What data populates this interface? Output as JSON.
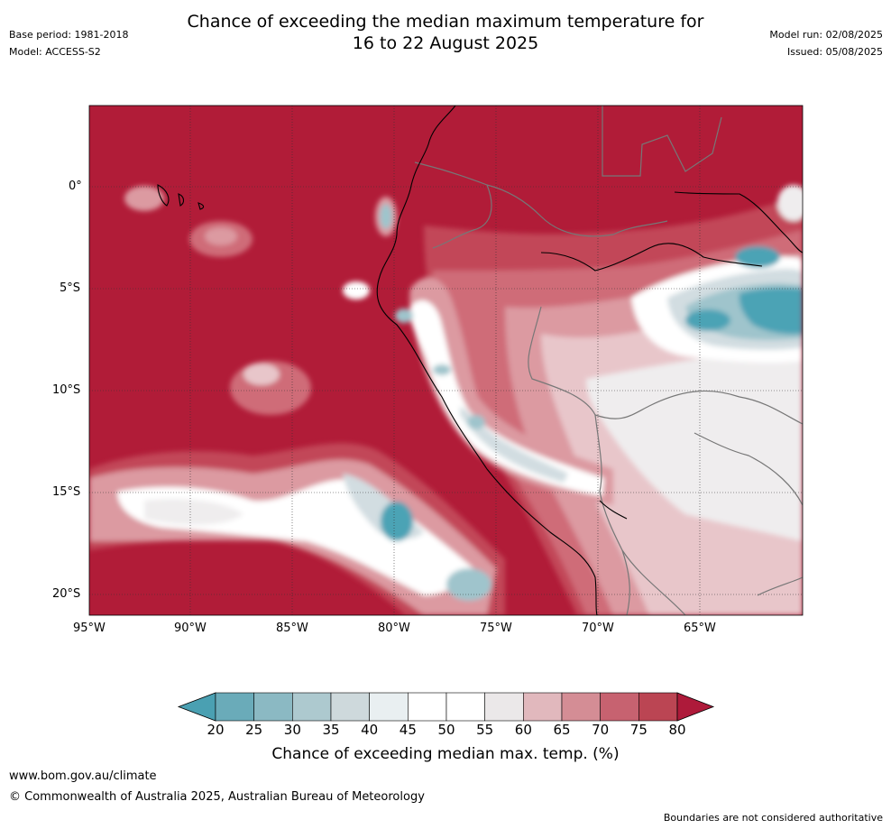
{
  "header": {
    "title_line1": "Chance of exceeding the median maximum temperature for",
    "title_line2": "16 to 22 August 2025",
    "base_period": "Base period: 1981-2018",
    "model": "Model: ACCESS-S2",
    "model_run": "Model run: 02/08/2025",
    "issued": "Issued: 05/08/2025"
  },
  "map": {
    "lat_labels": [
      "0°",
      "5°S",
      "10°S",
      "15°S",
      "20°S"
    ],
    "lon_labels": [
      "95°W",
      "90°W",
      "85°W",
      "80°W",
      "75°W",
      "70°W",
      "65°W"
    ],
    "colors": {
      "deep_red": "#b11c38",
      "red": "#c24658",
      "mid_red": "#cf6c78",
      "pink": "#dc9aa1",
      "light_pink": "#e8c6ca",
      "light_grey": "#efedee",
      "white": "#ffffff",
      "pale_blue": "#d2dde1",
      "blue": "#9fc4cc",
      "teal": "#4ba3b5"
    }
  },
  "colorbar": {
    "ticks": [
      "20",
      "25",
      "30",
      "35",
      "40",
      "45",
      "50",
      "55",
      "60",
      "65",
      "70",
      "75",
      "80"
    ],
    "colors": [
      "#4aa0b2",
      "#6aabb9",
      "#8bb9c3",
      "#adc9cf",
      "#ced9dc",
      "#e9eff1",
      "#ffffff",
      "#ffffff",
      "#ebe8e9",
      "#e1b8bd",
      "#d48d95",
      "#c76270",
      "#bb4553",
      "#ae1a3a"
    ],
    "label": "Chance of exceeding median max. temp. (%)"
  },
  "footer": {
    "website": "www.bom.gov.au/climate",
    "copyright": "© Commonwealth of Australia 2025, Australian Bureau of Meteorology",
    "disclaimer": "Boundaries are not considered authoritative"
  }
}
